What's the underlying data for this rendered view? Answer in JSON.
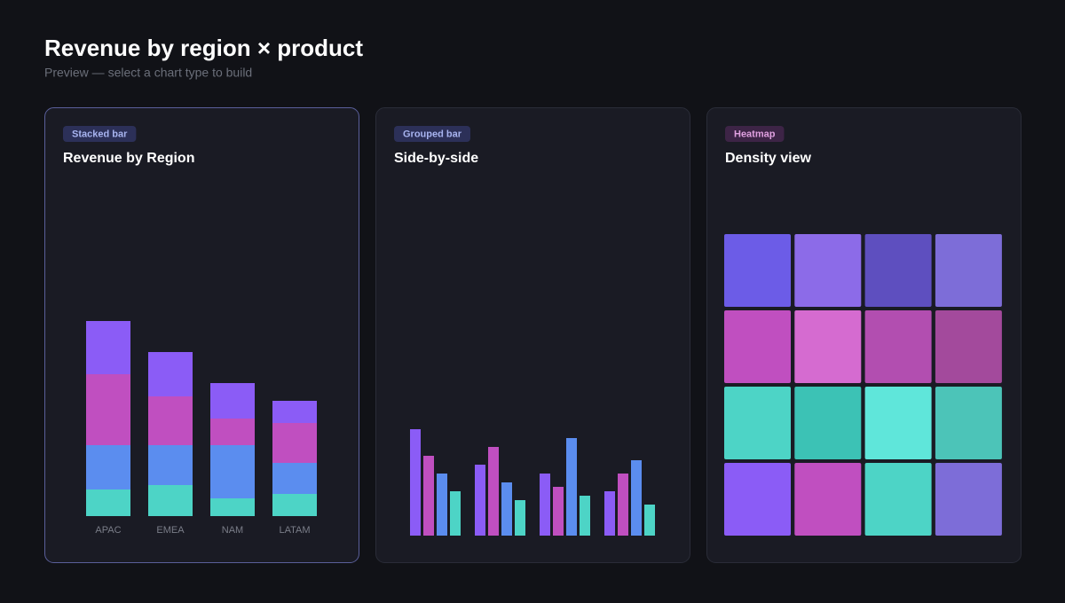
{
  "header": {
    "title": "Revenue by region × product",
    "subtitle": "Preview — select a chart type to build"
  },
  "cards": [
    {
      "badge": "Stacked bar",
      "title": "Revenue by Region",
      "selected": true,
      "badge_color": "#2c3058",
      "badge_text_color": "#a8b4f0",
      "chart": {
        "type": "stacked-bar",
        "categories": [
          "APAC",
          "EMEA",
          "NAM",
          "LATAM"
        ],
        "series": [
          {
            "color": "#4dd4c6",
            "values": [
              30,
              35,
              20,
              25
            ]
          },
          {
            "color": "#5b8def",
            "values": [
              50,
              45,
              60,
              35
            ]
          },
          {
            "color": "#c04fc0",
            "values": [
              80,
              55,
              30,
              45
            ]
          },
          {
            "color": "#8b5cf6",
            "values": [
              60,
              50,
              40,
              25
            ]
          }
        ]
      }
    },
    {
      "badge": "Grouped bar",
      "title": "Side-by-side",
      "selected": false,
      "badge_color": "#2c3058",
      "badge_text_color": "#a8b4f0",
      "chart": {
        "type": "grouped-bar",
        "series": [
          {
            "color": "#8b5cf6",
            "values": [
              120,
              80,
              70,
              50
            ]
          },
          {
            "color": "#c04fc0",
            "values": [
              90,
              100,
              55,
              70
            ]
          },
          {
            "color": "#5b8def",
            "values": [
              70,
              60,
              110,
              85
            ]
          },
          {
            "color": "#4dd4c6",
            "values": [
              50,
              40,
              45,
              35
            ]
          }
        ]
      }
    },
    {
      "badge": "Heatmap",
      "title": "Density view",
      "selected": false,
      "badge_color": "#3d2446",
      "badge_text_color": "#e0a0e0",
      "chart": {
        "type": "heatmap",
        "cell_colors": [
          [
            "#6c5ce7",
            "#8c6be8",
            "#5e4fbf",
            "#7d6dd8"
          ],
          [
            "#c04fc0",
            "#d56bd0",
            "#b24eb0",
            "#a34a9c"
          ],
          [
            "#4dd4c6",
            "#3cc2b5",
            "#5fe6da",
            "#4cc4b8"
          ],
          [
            "#8b5cf6",
            "#c04fc0",
            "#4dd4c6",
            "#7d6dd8"
          ]
        ]
      }
    }
  ]
}
